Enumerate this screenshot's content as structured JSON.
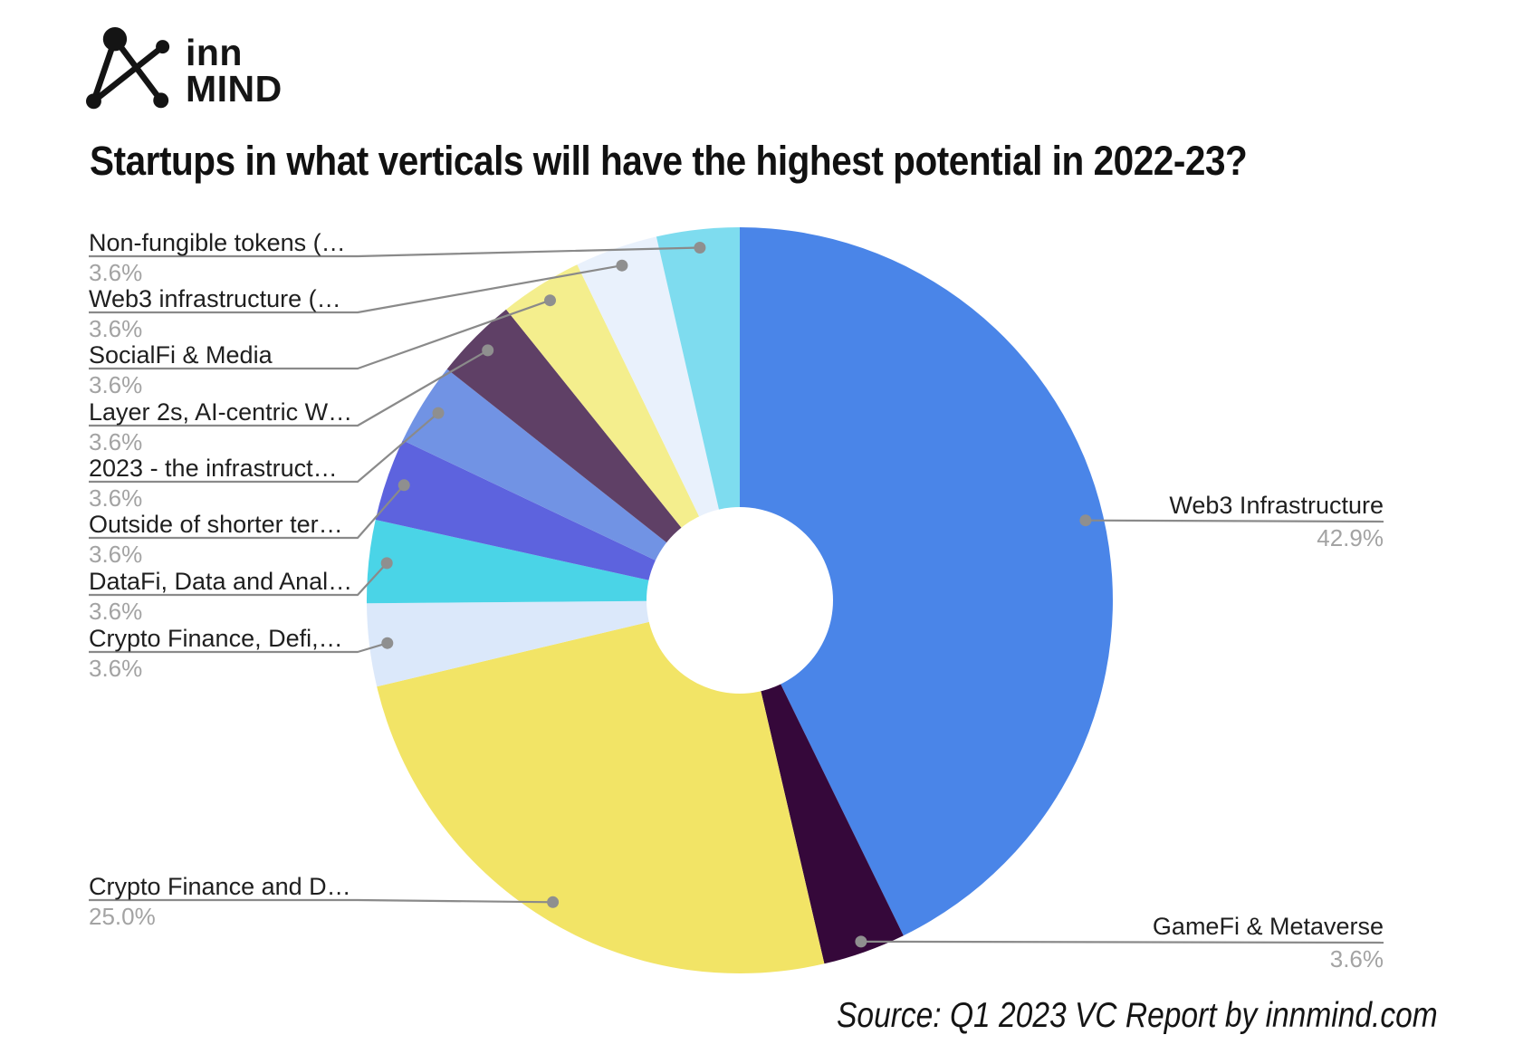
{
  "logo": {
    "brand_line1": "inn",
    "brand_line2": "MIND"
  },
  "title": "Startups in what verticals will have the highest potential in 2022-23?",
  "source_note": "Source: Q1 2023 VC Report by innmind.com",
  "chart_data": {
    "type": "pie",
    "donut": true,
    "donut_hole_ratio": 0.25,
    "start_angle_deg": 0,
    "direction": "clockwise",
    "title": "Startups in what verticals will have the highest potential in 2022-23?",
    "unit": "%",
    "legend_position": "callout-labels",
    "grid": false,
    "leader_line_color": "#8a8a8a",
    "label_color": "#1f1f1f",
    "pct_color": "#a3a3a3",
    "slices": [
      {
        "label": "Web3 Infrastructure",
        "value": 42.9,
        "pct_label": "42.9%",
        "color": "#4a85e8"
      },
      {
        "label": "GameFi & Metaverse",
        "value": 3.6,
        "pct_label": "3.6%",
        "color": "#35083a"
      },
      {
        "label": "Crypto Finance and D…",
        "value": 25.0,
        "pct_label": "25.0%",
        "color": "#f2e466"
      },
      {
        "label": "Crypto Finance, Defi,…",
        "value": 3.6,
        "pct_label": "3.6%",
        "color": "#dbe8fa"
      },
      {
        "label": "DataFi, Data and Anal…",
        "value": 3.6,
        "pct_label": "3.6%",
        "color": "#4ad4e7"
      },
      {
        "label": "Outside of shorter ter…",
        "value": 3.6,
        "pct_label": "3.6%",
        "color": "#5d63de"
      },
      {
        "label": "2023 - the infrastruct…",
        "value": 3.6,
        "pct_label": "3.6%",
        "color": "#7193e4"
      },
      {
        "label": "Layer 2s, AI-centric W…",
        "value": 3.6,
        "pct_label": "3.6%",
        "color": "#5f4066"
      },
      {
        "label": "SocialFi & Media",
        "value": 3.6,
        "pct_label": "3.6%",
        "color": "#f4ee8d"
      },
      {
        "label": "Web3 infrastructure (…",
        "value": 3.6,
        "pct_label": "3.6%",
        "color": "#e9f1fc"
      },
      {
        "label": "Non-fungible tokens (…",
        "value": 3.6,
        "pct_label": "3.6%",
        "color": "#7edcef"
      }
    ]
  }
}
